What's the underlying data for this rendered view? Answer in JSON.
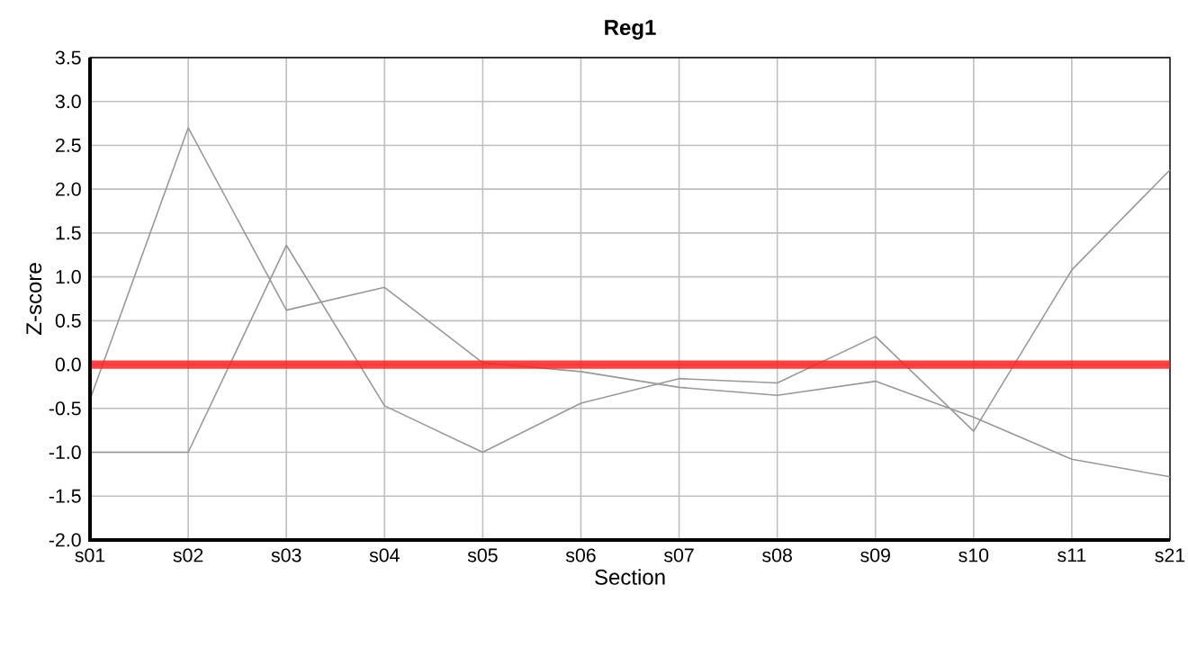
{
  "chart_data": {
    "type": "line",
    "title": "Reg1",
    "xlabel": "Section",
    "ylabel": "Z-score",
    "categories": [
      "s01",
      "s02",
      "s03",
      "s04",
      "s05",
      "s06",
      "s07",
      "s08",
      "s09",
      "s10",
      "s11",
      "s21"
    ],
    "series": [
      {
        "color": "#999999",
        "values": [
          -0.4,
          2.7,
          0.62,
          0.88,
          0.02,
          -0.08,
          -0.26,
          -0.35,
          -0.19,
          -0.6,
          -1.08,
          -1.28
        ]
      },
      {
        "color": "#999999",
        "values": [
          -1.0,
          -1.0,
          1.36,
          -0.47,
          -1.0,
          -0.44,
          -0.16,
          -0.21,
          0.32,
          -0.76,
          1.08,
          2.22
        ]
      }
    ],
    "ylim": [
      -2.0,
      3.5
    ],
    "yticks": [
      {
        "value": -2,
        "label": "-2.0"
      },
      -1.5,
      {
        "value": -1,
        "label": "-1.0"
      },
      -0.5,
      {
        "value": 0,
        "label": "0.0"
      },
      0.5,
      {
        "value": 1,
        "label": "1.0"
      },
      1.5,
      {
        "value": 2,
        "label": "2.0"
      },
      2.5,
      {
        "value": 3,
        "label": "3.0"
      },
      3.5
    ],
    "ref_lines": [
      {
        "axis": "y",
        "value": 0,
        "color": "#ff2020"
      }
    ],
    "grid": true,
    "marker": "none",
    "line_style": "solid"
  }
}
